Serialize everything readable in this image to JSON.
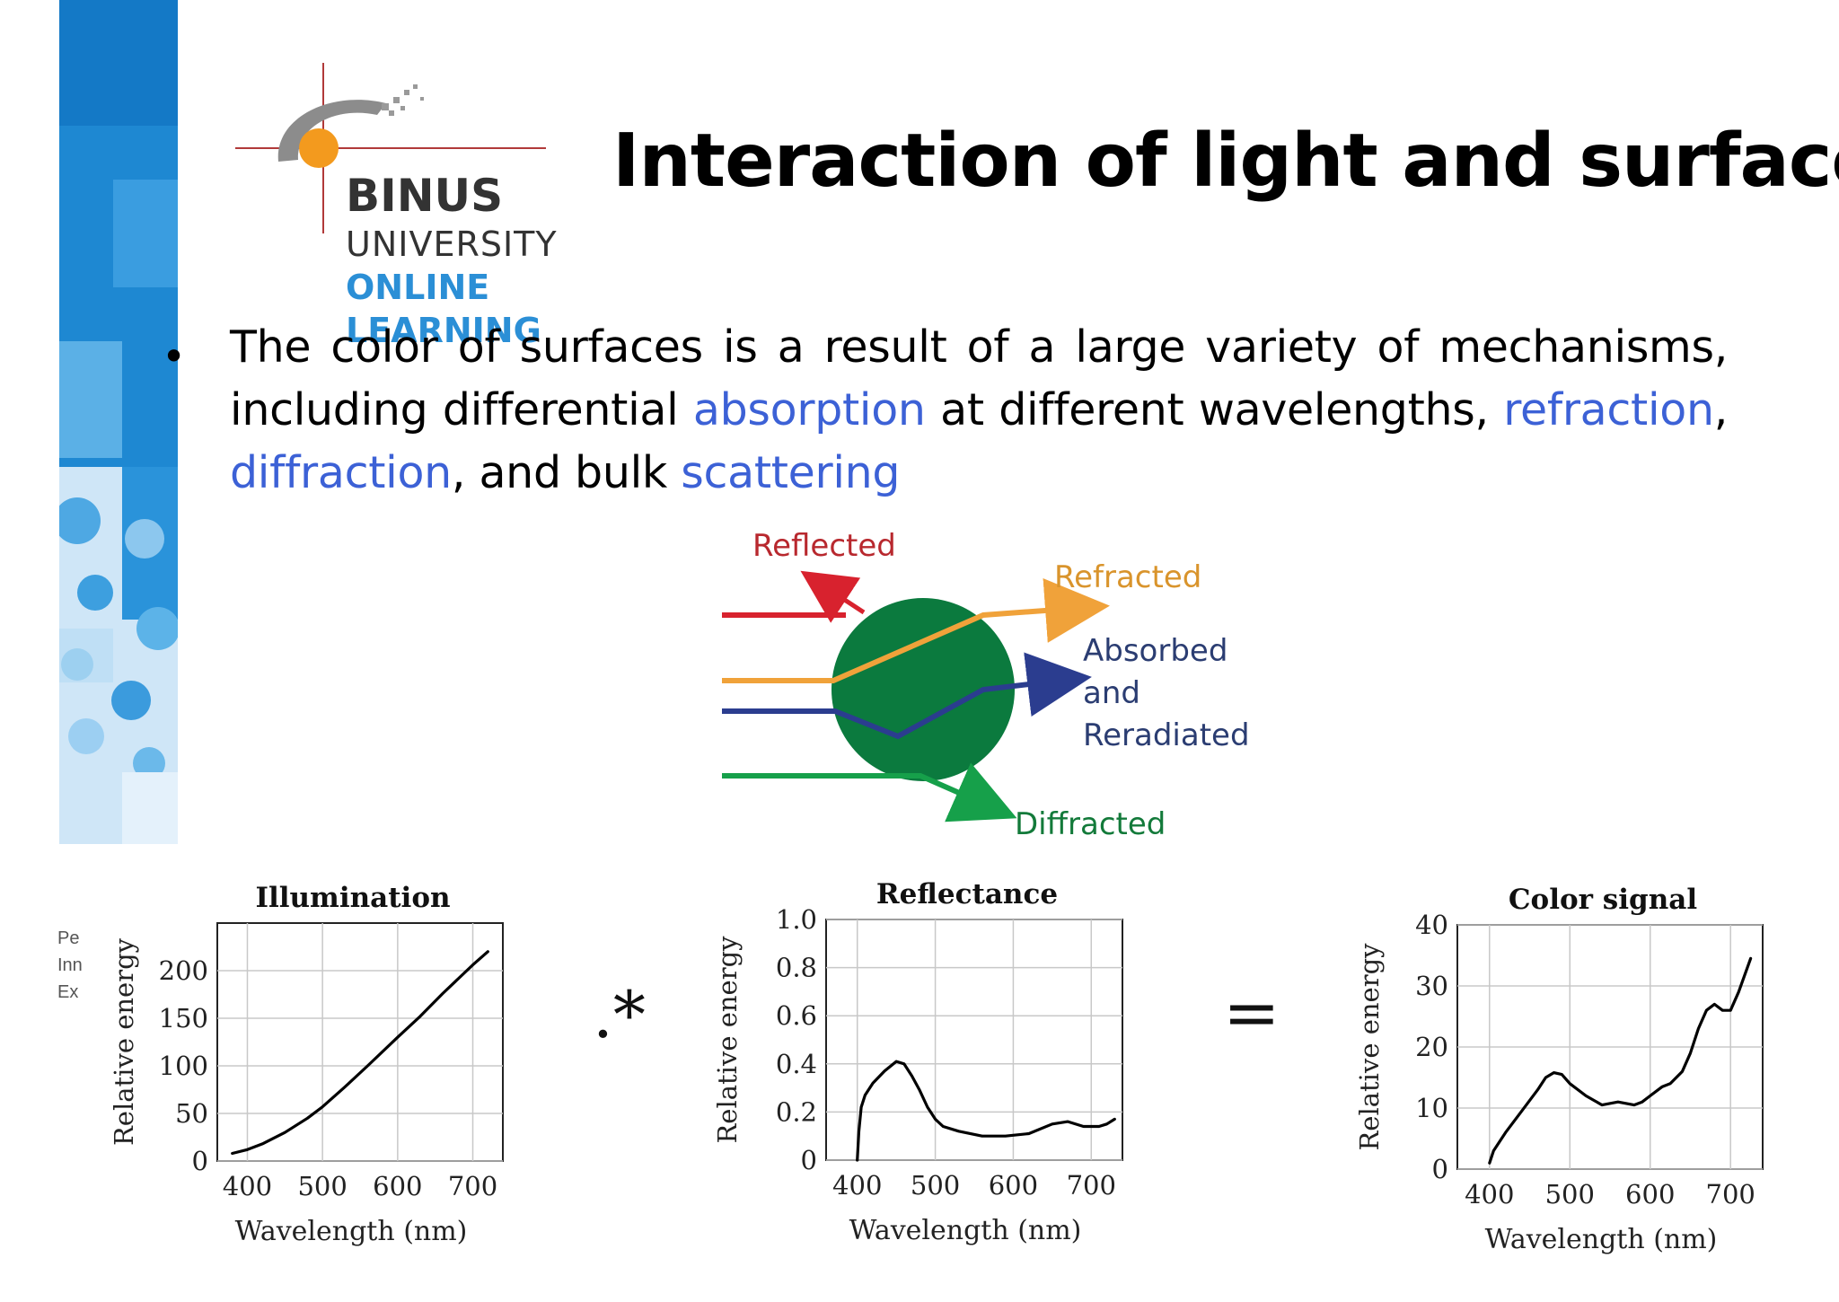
{
  "slide": {
    "title": "Interaction of light and surfaces",
    "bullet": {
      "segments": [
        {
          "text": "The color of surfaces is a result of a large variety of mechanisms, including differential ",
          "highlight": false
        },
        {
          "text": "absorption",
          "highlight": true
        },
        {
          "text": " at different wavelengths, ",
          "highlight": false
        },
        {
          "text": "refraction",
          "highlight": true
        },
        {
          "text": ", ",
          "highlight": false
        },
        {
          "text": "diffraction",
          "highlight": true
        },
        {
          "text": ", and bulk ",
          "highlight": false
        },
        {
          "text": "scattering",
          "highlight": true
        }
      ]
    },
    "highlight_color": "#3c61d6"
  },
  "logo": {
    "name": "BINUS",
    "line2": "UNIVERSITY",
    "line3": "ONLINE",
    "line4": "LEARNING",
    "colors": {
      "orange": "#f39a1e",
      "blue": "#2b8fd6",
      "gray": "#333333"
    }
  },
  "sidebar_colors": {
    "dark": "#1a86d0",
    "mid": "#4aa8e0",
    "light": "#a9d3f1"
  },
  "diagram": {
    "labels": {
      "reflected": "Reflected",
      "refracted": "Refracted",
      "absorbed_1": "Absorbed",
      "absorbed_2": "and",
      "absorbed_3": "Reradiated",
      "diffracted": "Diffracted"
    },
    "colors": {
      "reflected": "#d8222e",
      "refracted": "#f0a23a",
      "absorbed": "#2b3d8f",
      "diffracted": "#16a04a",
      "sphere": "#0b7a3e"
    }
  },
  "footer_fragment": [
    "Pe",
    "Inn",
    "Ex"
  ],
  "operators": {
    "multiply": ".*",
    "equals": "="
  },
  "chart_data": [
    {
      "type": "line",
      "title": "Illumination",
      "xlabel": "Wavelength (nm)",
      "ylabel": "Relative energy",
      "xlim": [
        360,
        740
      ],
      "ylim": [
        0,
        250
      ],
      "xticks": [
        400,
        500,
        600,
        700
      ],
      "yticks": [
        0,
        50,
        100,
        150,
        200
      ],
      "grid": true,
      "x": [
        380,
        400,
        420,
        450,
        480,
        500,
        530,
        560,
        600,
        630,
        660,
        700,
        720
      ],
      "y": [
        8,
        12,
        18,
        30,
        45,
        57,
        78,
        100,
        130,
        152,
        176,
        206,
        220
      ]
    },
    {
      "type": "line",
      "title": "Reflectance",
      "xlabel": "Wavelength (nm)",
      "ylabel": "Relative energy",
      "xlim": [
        360,
        740
      ],
      "ylim": [
        0,
        1.0
      ],
      "xticks": [
        400,
        500,
        600,
        700
      ],
      "yticks": [
        0,
        0.2,
        0.4,
        0.6,
        0.8,
        1.0
      ],
      "ytick_labels": [
        "0",
        "0.2",
        "0.4",
        "0.6",
        "0.8",
        "1.0"
      ],
      "grid": true,
      "x": [
        400,
        402,
        405,
        410,
        420,
        435,
        450,
        460,
        470,
        480,
        490,
        500,
        510,
        530,
        560,
        590,
        620,
        650,
        670,
        690,
        700,
        710,
        720,
        730
      ],
      "y": [
        0,
        0.12,
        0.22,
        0.27,
        0.32,
        0.37,
        0.41,
        0.4,
        0.35,
        0.29,
        0.22,
        0.17,
        0.14,
        0.12,
        0.1,
        0.1,
        0.11,
        0.15,
        0.16,
        0.14,
        0.14,
        0.14,
        0.15,
        0.17
      ]
    },
    {
      "type": "line",
      "title": "Color signal",
      "xlabel": "Wavelength (nm)",
      "ylabel": "Relative energy",
      "xlim": [
        360,
        740
      ],
      "ylim": [
        0,
        40
      ],
      "xticks": [
        400,
        500,
        600,
        700
      ],
      "yticks": [
        0,
        10,
        20,
        30,
        40
      ],
      "grid": true,
      "x": [
        400,
        405,
        420,
        440,
        460,
        470,
        480,
        490,
        500,
        520,
        540,
        560,
        580,
        590,
        600,
        615,
        625,
        640,
        650,
        660,
        670,
        680,
        690,
        700,
        710,
        725
      ],
      "y": [
        1,
        3,
        6,
        9.5,
        13,
        15,
        15.8,
        15.5,
        14,
        12,
        10.5,
        11,
        10.5,
        11,
        12,
        13.5,
        14,
        16,
        19,
        23,
        26,
        27,
        26,
        26,
        29,
        34.5
      ]
    }
  ]
}
